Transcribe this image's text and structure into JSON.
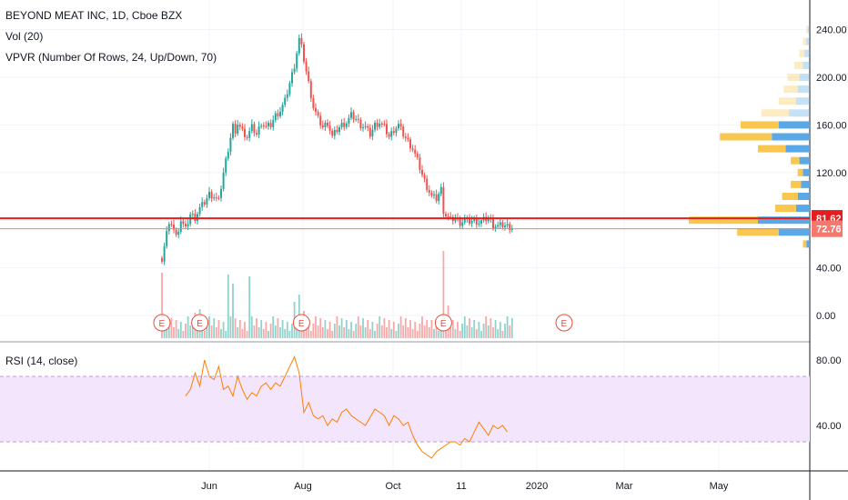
{
  "chart_data": {
    "type": "candlestick",
    "legend": [
      "BEYOND MEAT INC, 1D, Cboe BZX",
      "Vol (20)",
      "VPVR (Number Of Rows, 24, Up/Down, 70)"
    ],
    "rsi_label": "RSI (14, close)",
    "x_ticks": [
      "Jun",
      "Aug",
      "Oct",
      "11",
      "2020",
      "Mar",
      "May"
    ],
    "y_ticks": [
      "240.00",
      "200.00",
      "160.00",
      "120.00",
      "80.00",
      "40.00",
      "0.00"
    ],
    "rsi_ticks": [
      "80.00",
      "40.00"
    ],
    "ylim": [
      -20,
      250
    ],
    "rsi_ylim": [
      15,
      90
    ],
    "rsi_band": [
      30,
      70
    ],
    "price_lines": [
      {
        "value": 81.62,
        "label": "81.62",
        "color": "#e41e1e"
      },
      {
        "value": 72.76,
        "label": "72.76",
        "color": "#f5786e"
      }
    ],
    "earnings_marker": "E",
    "colors": {
      "up": "#26a69a",
      "down": "#ef5350",
      "rsi": "#ff7f00",
      "rsi_band": "#f3e5fc",
      "vp_up": "#5aa9e6",
      "vp_down": "#f9c74f"
    },
    "price_path": [
      [
        0,
        48
      ],
      [
        2,
        70
      ],
      [
        4,
        78
      ],
      [
        6,
        66
      ],
      [
        8,
        80
      ],
      [
        10,
        72
      ],
      [
        12,
        85
      ],
      [
        14,
        82
      ],
      [
        16,
        90
      ],
      [
        18,
        95
      ],
      [
        20,
        102
      ],
      [
        22,
        100
      ],
      [
        24,
        96
      ],
      [
        26,
        120
      ],
      [
        28,
        140
      ],
      [
        30,
        160
      ],
      [
        31,
        150
      ],
      [
        32,
        162
      ],
      [
        34,
        155
      ],
      [
        36,
        150
      ],
      [
        38,
        158
      ],
      [
        40,
        152
      ],
      [
        42,
        162
      ],
      [
        44,
        158
      ],
      [
        46,
        160
      ],
      [
        48,
        168
      ],
      [
        50,
        172
      ],
      [
        52,
        180
      ],
      [
        54,
        195
      ],
      [
        56,
        210
      ],
      [
        58,
        232
      ],
      [
        59,
        225
      ],
      [
        60,
        215
      ],
      [
        62,
        195
      ],
      [
        64,
        175
      ],
      [
        66,
        165
      ],
      [
        68,
        158
      ],
      [
        70,
        162
      ],
      [
        72,
        150
      ],
      [
        74,
        156
      ],
      [
        76,
        160
      ],
      [
        78,
        162
      ],
      [
        80,
        168
      ],
      [
        82,
        165
      ],
      [
        84,
        160
      ],
      [
        86,
        158
      ],
      [
        88,
        152
      ],
      [
        90,
        160
      ],
      [
        92,
        162
      ],
      [
        94,
        158
      ],
      [
        96,
        150
      ],
      [
        98,
        156
      ],
      [
        100,
        160
      ],
      [
        102,
        152
      ],
      [
        104,
        146
      ],
      [
        106,
        140
      ],
      [
        108,
        130
      ],
      [
        110,
        118
      ],
      [
        112,
        108
      ],
      [
        114,
        100
      ],
      [
        116,
        98
      ],
      [
        118,
        106
      ],
      [
        119,
        88
      ],
      [
        120,
        84
      ],
      [
        122,
        80
      ],
      [
        124,
        82
      ],
      [
        126,
        78
      ],
      [
        128,
        80
      ],
      [
        130,
        79
      ],
      [
        132,
        80
      ],
      [
        134,
        78
      ],
      [
        136,
        80
      ],
      [
        138,
        82
      ],
      [
        140,
        76
      ],
      [
        142,
        75
      ],
      [
        144,
        76
      ],
      [
        146,
        75
      ],
      [
        148,
        74
      ]
    ],
    "volume_spikes": [
      [
        0,
        36
      ],
      [
        14,
        14
      ],
      [
        16,
        16
      ],
      [
        28,
        35
      ],
      [
        30,
        30
      ],
      [
        37,
        34
      ],
      [
        56,
        20
      ],
      [
        58,
        24
      ],
      [
        60,
        15
      ],
      [
        112,
        10
      ],
      [
        119,
        48
      ],
      [
        121,
        18
      ]
    ],
    "earnings_days": [
      0,
      16,
      59,
      119,
      170
    ],
    "vp_rows": [
      [
        240,
        1,
        1
      ],
      [
        230,
        2,
        2
      ],
      [
        220,
        3,
        3
      ],
      [
        210,
        4,
        5
      ],
      [
        200,
        6,
        7
      ],
      [
        190,
        7,
        8
      ],
      [
        180,
        8,
        10
      ],
      [
        170,
        12,
        16
      ],
      [
        160,
        18,
        22
      ],
      [
        150,
        22,
        30
      ],
      [
        140,
        14,
        16
      ],
      [
        130,
        6,
        5
      ],
      [
        120,
        4,
        3
      ],
      [
        110,
        5,
        6
      ],
      [
        100,
        7,
        9
      ],
      [
        90,
        8,
        12
      ],
      [
        80,
        30,
        40
      ],
      [
        70,
        18,
        24
      ],
      [
        60,
        2,
        2
      ]
    ],
    "rsi_path": [
      [
        10,
        58
      ],
      [
        12,
        62
      ],
      [
        14,
        72
      ],
      [
        16,
        64
      ],
      [
        18,
        80
      ],
      [
        20,
        70
      ],
      [
        22,
        68
      ],
      [
        24,
        76
      ],
      [
        26,
        62
      ],
      [
        28,
        64
      ],
      [
        30,
        58
      ],
      [
        32,
        70
      ],
      [
        34,
        62
      ],
      [
        36,
        56
      ],
      [
        38,
        60
      ],
      [
        40,
        58
      ],
      [
        42,
        64
      ],
      [
        44,
        66
      ],
      [
        46,
        62
      ],
      [
        48,
        66
      ],
      [
        50,
        64
      ],
      [
        52,
        70
      ],
      [
        54,
        76
      ],
      [
        56,
        82
      ],
      [
        58,
        72
      ],
      [
        60,
        48
      ],
      [
        62,
        54
      ],
      [
        64,
        46
      ],
      [
        66,
        44
      ],
      [
        68,
        46
      ],
      [
        70,
        40
      ],
      [
        72,
        44
      ],
      [
        74,
        42
      ],
      [
        76,
        48
      ],
      [
        78,
        50
      ],
      [
        80,
        46
      ],
      [
        82,
        44
      ],
      [
        84,
        42
      ],
      [
        86,
        40
      ],
      [
        88,
        45
      ],
      [
        90,
        50
      ],
      [
        92,
        48
      ],
      [
        94,
        46
      ],
      [
        96,
        40
      ],
      [
        98,
        46
      ],
      [
        100,
        44
      ],
      [
        102,
        40
      ],
      [
        104,
        42
      ],
      [
        106,
        34
      ],
      [
        108,
        28
      ],
      [
        110,
        24
      ],
      [
        112,
        22
      ],
      [
        114,
        20
      ],
      [
        116,
        24
      ],
      [
        118,
        26
      ],
      [
        120,
        28
      ],
      [
        122,
        30
      ],
      [
        124,
        30
      ],
      [
        126,
        28
      ],
      [
        128,
        32
      ],
      [
        130,
        30
      ],
      [
        132,
        36
      ],
      [
        134,
        42
      ],
      [
        136,
        38
      ],
      [
        138,
        34
      ],
      [
        140,
        40
      ],
      [
        142,
        38
      ],
      [
        144,
        40
      ],
      [
        146,
        36
      ]
    ]
  }
}
